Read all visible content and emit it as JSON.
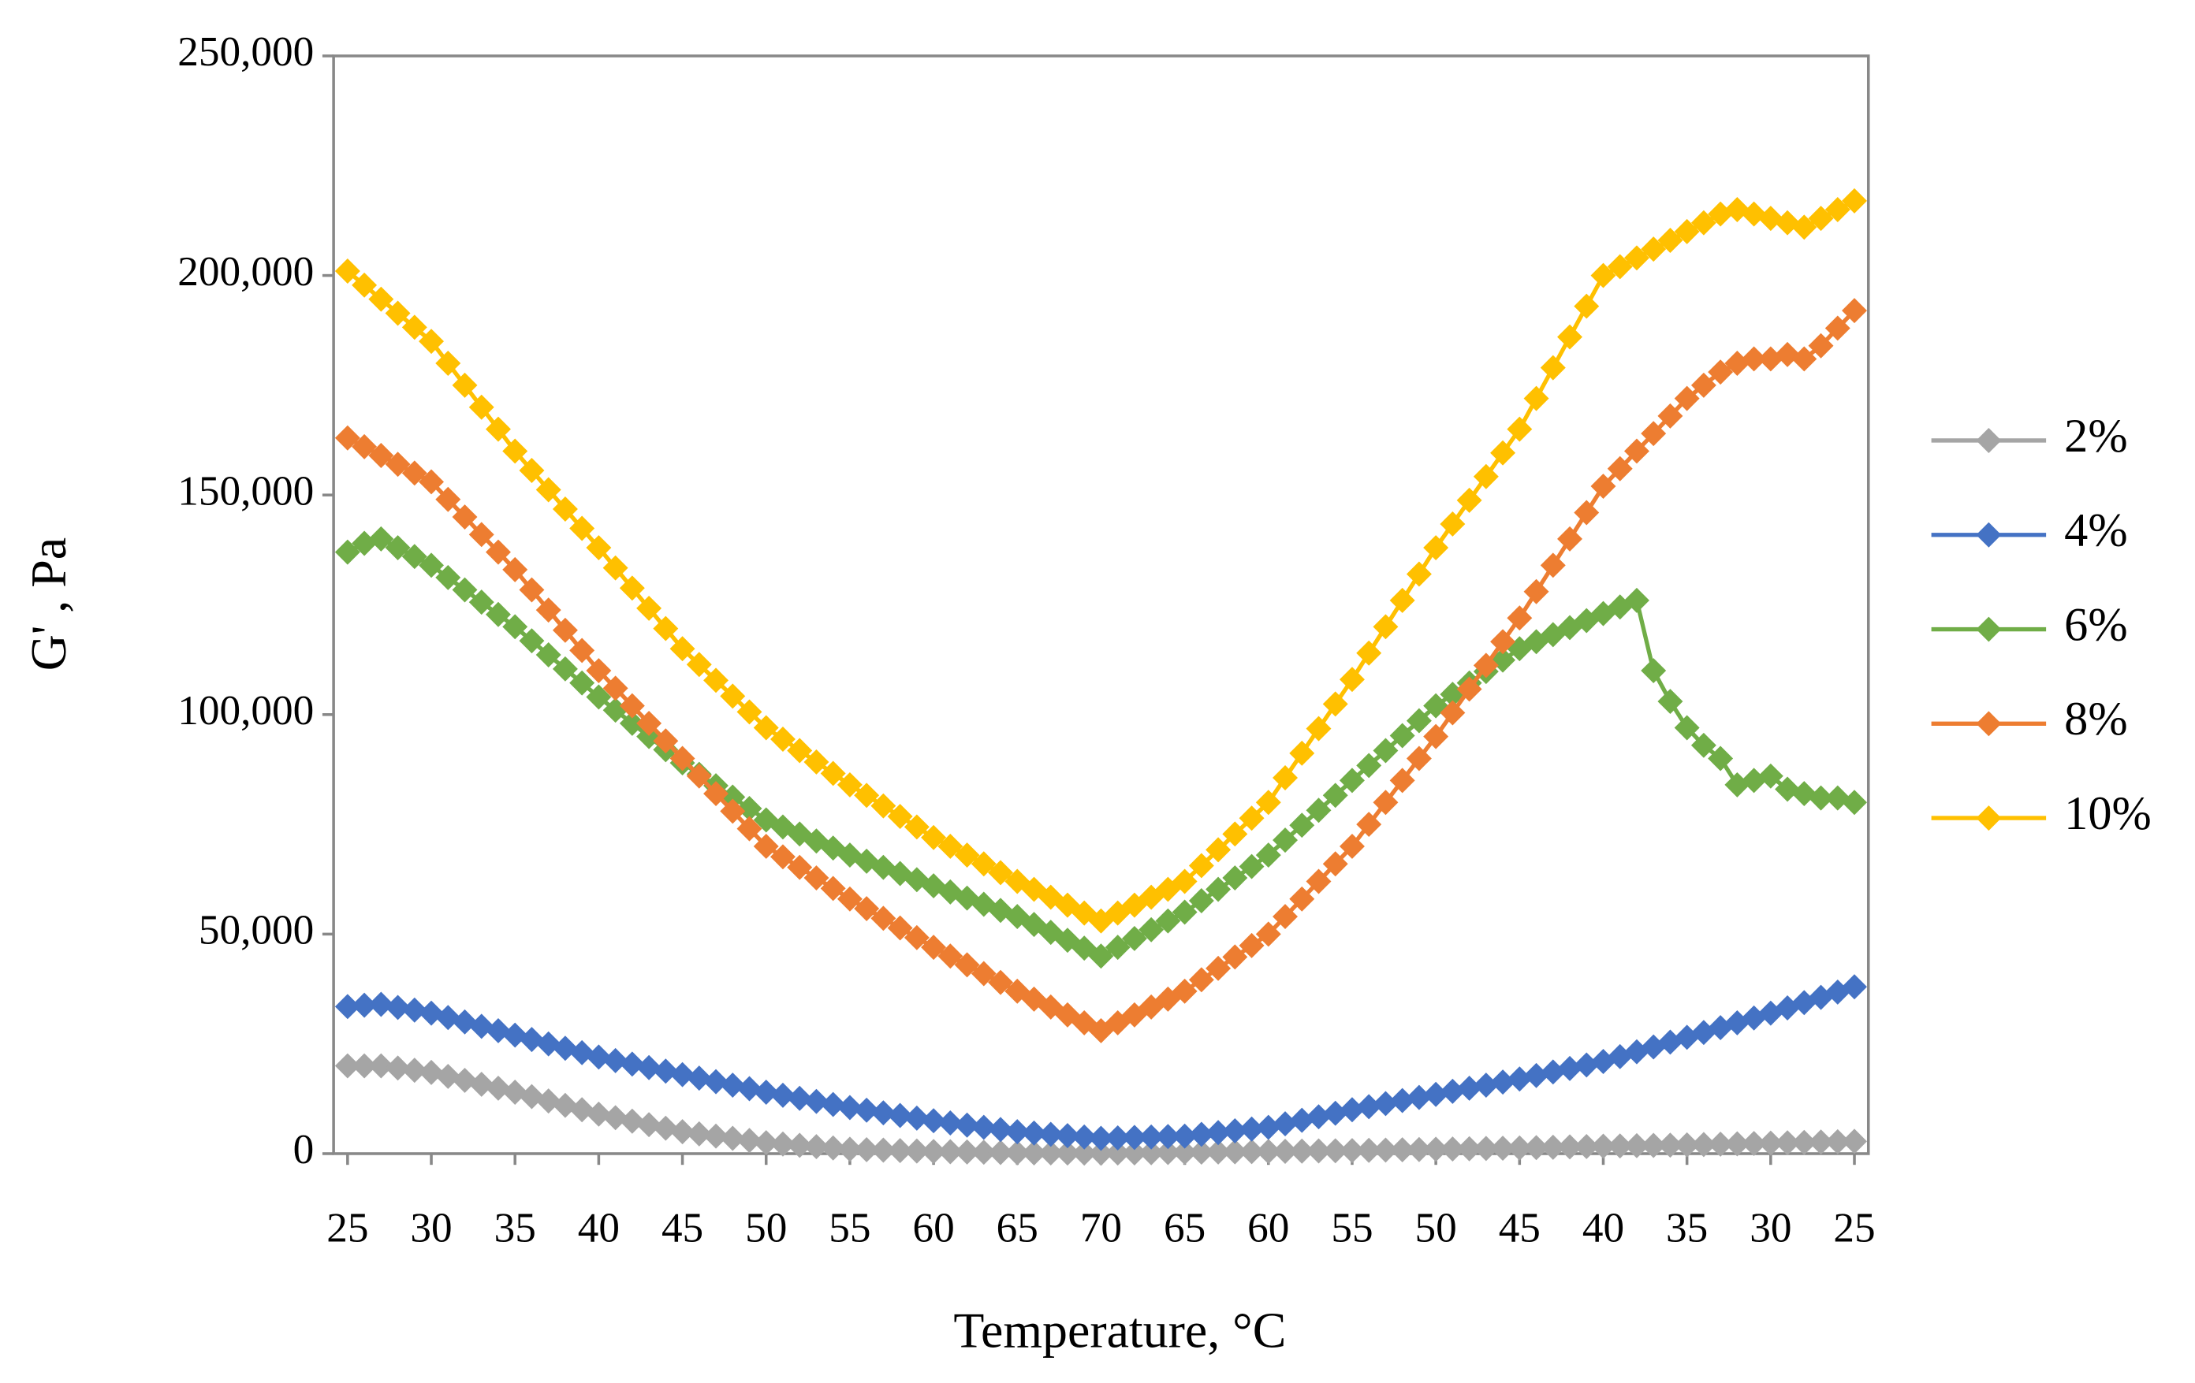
{
  "chart_data": {
    "type": "line",
    "x_label": "Temperature, °C",
    "y_label": "G' , Pa",
    "categories": [
      25,
      null,
      null,
      null,
      null,
      30,
      null,
      null,
      null,
      null,
      35,
      null,
      null,
      null,
      null,
      40,
      null,
      null,
      null,
      null,
      45,
      null,
      null,
      null,
      null,
      50,
      null,
      null,
      null,
      null,
      55,
      null,
      null,
      null,
      null,
      60,
      null,
      null,
      null,
      null,
      65,
      null,
      null,
      null,
      null,
      70,
      null,
      null,
      null,
      null,
      65,
      null,
      null,
      null,
      null,
      60,
      null,
      null,
      null,
      null,
      55,
      null,
      null,
      null,
      null,
      50,
      null,
      null,
      null,
      null,
      45,
      null,
      null,
      null,
      null,
      40,
      null,
      null,
      null,
      null,
      35,
      null,
      null,
      null,
      null,
      30,
      null,
      null,
      null,
      null,
      25
    ],
    "ylim": [
      0,
      250000
    ],
    "yticks": [
      0,
      {
        "value": 50000,
        "label": "50,000"
      },
      {
        "value": 100000,
        "label": "100,000"
      },
      {
        "value": 150000,
        "label": "150,000"
      },
      {
        "value": 200000,
        "label": "200,000"
      },
      {
        "value": 250000,
        "label": "250,000"
      }
    ],
    "legend": "right",
    "series": [
      {
        "name": "2%",
        "color": "#a5a5a5",
        "values": [
          20000,
          20000,
          20000,
          19500,
          19000,
          18500,
          17600,
          16700,
          15800,
          14900,
          14000,
          13000,
          12000,
          11000,
          10000,
          9000,
          8200,
          7400,
          6600,
          5800,
          5000,
          4500,
          4000,
          3500,
          3000,
          2500,
          2200,
          1900,
          1600,
          1300,
          1000,
          900,
          800,
          700,
          600,
          500,
          440,
          380,
          320,
          260,
          200,
          180,
          160,
          140,
          120,
          100,
          140,
          180,
          220,
          260,
          300,
          340,
          380,
          420,
          460,
          500,
          540,
          580,
          620,
          660,
          700,
          760,
          820,
          880,
          940,
          1000,
          1060,
          1120,
          1180,
          1240,
          1300,
          1380,
          1460,
          1540,
          1620,
          1700,
          1760,
          1820,
          1880,
          1940,
          2000,
          2080,
          2160,
          2240,
          2320,
          2400,
          2480,
          2560,
          2640,
          2720,
          2800
        ]
      },
      {
        "name": "4%",
        "color": "#4472c4",
        "values": [
          33500,
          33800,
          34000,
          33300,
          32700,
          32000,
          31000,
          30000,
          29000,
          28000,
          27000,
          26000,
          25000,
          24000,
          23000,
          22000,
          21200,
          20400,
          19600,
          18800,
          18000,
          17200,
          16400,
          15600,
          14800,
          14000,
          13300,
          12600,
          11900,
          11200,
          10500,
          9900,
          9300,
          8700,
          8100,
          7500,
          7000,
          6500,
          6000,
          5500,
          5000,
          4700,
          4400,
          4100,
          3800,
          3500,
          3600,
          3700,
          3800,
          3900,
          4000,
          4400,
          4800,
          5200,
          5600,
          6000,
          6800,
          7600,
          8400,
          9200,
          10000,
          10700,
          11400,
          12100,
          12800,
          13500,
          14200,
          14900,
          15600,
          16300,
          17000,
          17800,
          18600,
          19400,
          20200,
          21000,
          22100,
          23200,
          24300,
          25400,
          26500,
          27600,
          28700,
          29800,
          30900,
          32000,
          33200,
          34400,
          35600,
          36800,
          38000
        ]
      },
      {
        "name": "6%",
        "color": "#70ad47",
        "values": [
          137000,
          139000,
          140000,
          138000,
          136000,
          134000,
          131200,
          128400,
          125600,
          122800,
          120000,
          116800,
          113600,
          110400,
          107200,
          104000,
          101000,
          98000,
          95000,
          92000,
          89000,
          86400,
          83800,
          81200,
          78600,
          76000,
          74400,
          72800,
          71200,
          69600,
          68000,
          66600,
          65200,
          63800,
          62400,
          61000,
          59600,
          58200,
          56800,
          55400,
          54000,
          52200,
          50400,
          48600,
          46800,
          45000,
          47000,
          49000,
          51000,
          53000,
          55000,
          57600,
          60200,
          62800,
          65400,
          68000,
          71400,
          74800,
          78200,
          81600,
          85000,
          88400,
          91800,
          95200,
          98600,
          102000,
          104600,
          107200,
          109800,
          112400,
          115000,
          116600,
          118200,
          119800,
          121400,
          123000,
          124500,
          126000,
          110000,
          103000,
          97000,
          93000,
          90000,
          84000,
          85000,
          86000,
          83000,
          82000,
          81000,
          81000,
          80000
        ]
      },
      {
        "name": "8%",
        "color": "#ed7d31",
        "values": [
          163000,
          161000,
          159000,
          157000,
          155000,
          153000,
          149000,
          145000,
          141000,
          137000,
          133000,
          128400,
          123800,
          119200,
          114600,
          110000,
          106000,
          102000,
          98000,
          94000,
          90000,
          86000,
          82000,
          78000,
          74000,
          70000,
          67600,
          65200,
          62800,
          60400,
          58000,
          55800,
          53600,
          51400,
          49200,
          47000,
          45000,
          43000,
          41000,
          39000,
          37000,
          35200,
          33400,
          31600,
          29800,
          28000,
          29800,
          31600,
          33400,
          35200,
          37000,
          39600,
          42200,
          44800,
          47400,
          50000,
          54000,
          58000,
          62000,
          66000,
          70000,
          75000,
          80000,
          85000,
          90000,
          95000,
          100400,
          105800,
          111200,
          116600,
          122000,
          128000,
          134000,
          140000,
          146000,
          152000,
          156000,
          160000,
          164000,
          168000,
          172000,
          175000,
          178000,
          180000,
          181000,
          181000,
          182000,
          181000,
          184000,
          188000,
          192000
        ]
      },
      {
        "name": "10%",
        "color": "#ffc000",
        "values": [
          201000,
          197800,
          194600,
          191400,
          188200,
          185000,
          180000,
          175000,
          170000,
          165000,
          160000,
          155600,
          151200,
          146800,
          142400,
          138000,
          133400,
          128800,
          124200,
          119600,
          115000,
          111400,
          107800,
          104200,
          100600,
          97000,
          94400,
          91800,
          89200,
          86600,
          84000,
          81600,
          79200,
          76800,
          74400,
          72000,
          70000,
          68000,
          66000,
          64000,
          62000,
          60200,
          58400,
          56600,
          54800,
          53000,
          54800,
          56600,
          58400,
          60200,
          62000,
          65600,
          69200,
          72800,
          76400,
          80000,
          85600,
          91200,
          96800,
          102400,
          108000,
          114000,
          120000,
          126000,
          132000,
          138000,
          143400,
          148800,
          154200,
          159600,
          165000,
          172000,
          179000,
          186000,
          193000,
          200000,
          202000,
          204000,
          206000,
          208000,
          210000,
          212000,
          214000,
          215000,
          214000,
          213000,
          212000,
          211000,
          213000,
          215000,
          217000
        ]
      }
    ]
  }
}
